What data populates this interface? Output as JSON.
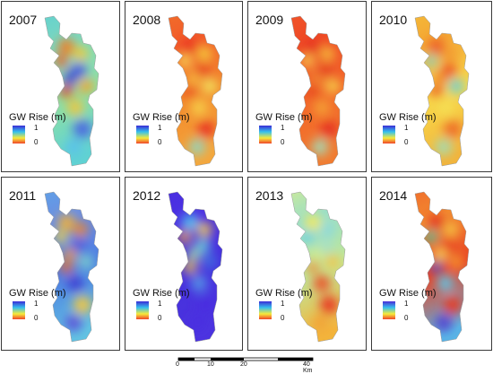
{
  "panels": [
    {
      "year": "2007",
      "legend_title": "GW Rise (m)",
      "legend_max": "1",
      "legend_min": "0",
      "ramp": [
        "#3b2bd6",
        "#35c0ee",
        "#f7ea3a",
        "#f0442a"
      ],
      "fill": [
        "#56ccd8",
        "#7ad8c0",
        "#8ee0a4",
        "#60d2d2"
      ],
      "spots": [
        {
          "c": "#f27a24"
        },
        {
          "c": "#f7c934"
        },
        {
          "c": "#f05a22"
        },
        {
          "c": "#3d4be6"
        },
        {
          "c": "#2f39d4"
        },
        {
          "c": "#f5a12c"
        },
        {
          "c": "#e23c1f"
        },
        {
          "c": "#f4c43a"
        },
        {
          "c": "#4a62e2"
        },
        {
          "c": "#58c1ec"
        }
      ]
    },
    {
      "year": "2008",
      "legend_title": "GW Rise (m)",
      "legend_max": "1",
      "legend_min": "0",
      "ramp": [
        "#3b2bd6",
        "#35c0ee",
        "#f7ea3a",
        "#f0442a"
      ],
      "fill": [
        "#f07a2a",
        "#f25a2a",
        "#f28a2e",
        "#f5a63a"
      ],
      "spots": [
        {
          "c": "#ea3620"
        },
        {
          "c": "#f5d23e"
        },
        {
          "c": "#f8e85a"
        },
        {
          "c": "#e73a20"
        },
        {
          "c": "#f6c542"
        },
        {
          "c": "#f2ea62"
        },
        {
          "c": "#ea4a22"
        },
        {
          "c": "#f6d04a"
        },
        {
          "c": "#e83420"
        },
        {
          "c": "#8fd6c2"
        }
      ]
    },
    {
      "year": "2009",
      "legend_title": "GW Rise (m)",
      "legend_max": "1",
      "legend_min": "0",
      "ramp": [
        "#3b2bd6",
        "#35c0ee",
        "#f7ea3a",
        "#f0442a"
      ],
      "fill": [
        "#f05a2a",
        "#ef4a26",
        "#f2662a",
        "#f27a2e"
      ],
      "spots": [
        {
          "c": "#e63420"
        },
        {
          "c": "#f5c03c"
        },
        {
          "c": "#f6dc52"
        },
        {
          "c": "#e43a20"
        },
        {
          "c": "#f08c32"
        },
        {
          "c": "#f5d64c"
        },
        {
          "c": "#e6441f"
        },
        {
          "c": "#f4a236"
        },
        {
          "c": "#e53322"
        },
        {
          "c": "#a2dcb8"
        }
      ]
    },
    {
      "year": "2010",
      "legend_title": "GW Rise (m)",
      "legend_max": "1",
      "legend_min": "0",
      "ramp": [
        "#3b2bd6",
        "#35c0ee",
        "#f7ea3a",
        "#f0442a"
      ],
      "fill": [
        "#f5c53a",
        "#f4a634",
        "#f7d84a",
        "#f3b43a"
      ],
      "spots": [
        {
          "c": "#ec5a26"
        },
        {
          "c": "#f39a30"
        },
        {
          "c": "#86d6c8"
        },
        {
          "c": "#ec4a24"
        },
        {
          "c": "#f0842c"
        },
        {
          "c": "#66cce0"
        },
        {
          "c": "#ea5424"
        },
        {
          "c": "#f5e054"
        },
        {
          "c": "#ee6a28"
        },
        {
          "c": "#9fdcb8"
        }
      ]
    },
    {
      "year": "2011",
      "legend_title": "GW Rise (m)",
      "legend_max": "1",
      "legend_min": "0",
      "ramp": [
        "#3b2bd6",
        "#35c0ee",
        "#f7ea3a",
        "#f0442a"
      ],
      "fill": [
        "#5aaee6",
        "#6a8ee4",
        "#4e7ee2",
        "#62c4e2"
      ],
      "spots": [
        {
          "c": "#f5b234"
        },
        {
          "c": "#f0842c"
        },
        {
          "c": "#f3d84a"
        },
        {
          "c": "#4a56dc"
        },
        {
          "c": "#f29a32"
        },
        {
          "c": "#7ed6cc"
        },
        {
          "c": "#ee6a2a"
        },
        {
          "c": "#3e3ed2"
        },
        {
          "c": "#f4c840"
        },
        {
          "c": "#5b4ed8"
        }
      ]
    },
    {
      "year": "2012",
      "legend_title": "GW Rise (m)",
      "legend_max": "1",
      "legend_min": "0",
      "ramp": [
        "#3b2bd6",
        "#35c0ee",
        "#f7ea3a",
        "#f0442a"
      ],
      "fill": [
        "#4a2ee0",
        "#4b30e2",
        "#4630dc",
        "#4c34e0"
      ],
      "spots": [
        {
          "c": "#4fc6ee"
        },
        {
          "c": "#f6d24a"
        },
        {
          "c": "#f2a836"
        },
        {
          "c": "#63d0d8"
        },
        {
          "c": "#a8e0a4"
        },
        {
          "c": "#3f6fe0"
        },
        {
          "c": "#f0c542"
        },
        {
          "c": "#5598e6"
        },
        {
          "c": "#4a2ee0"
        },
        {
          "c": "#4a2ee0"
        }
      ]
    },
    {
      "year": "2013",
      "legend_title": "GW Rise (m)",
      "legend_max": "1",
      "legend_min": "0",
      "ramp": [
        "#3b2bd6",
        "#35c0ee",
        "#f7ea3a",
        "#f0442a"
      ],
      "fill": [
        "#eef07a",
        "#9adfc8",
        "#bfe698",
        "#f3b43c"
      ],
      "spots": [
        {
          "c": "#f5e95c"
        },
        {
          "c": "#8ad8e0"
        },
        {
          "c": "#62cde8"
        },
        {
          "c": "#a6e0c8"
        },
        {
          "c": "#d6ec86"
        },
        {
          "c": "#f5c246"
        },
        {
          "c": "#f08a30"
        },
        {
          "c": "#ec4a26"
        },
        {
          "c": "#e83522"
        },
        {
          "c": "#f3a236"
        }
      ]
    },
    {
      "year": "2014",
      "legend_title": "GW Rise (m)",
      "legend_max": "1",
      "legend_min": "0",
      "ramp": [
        "#4b2bd6",
        "#35c0ee",
        "#f7ea3a",
        "#f0442a"
      ],
      "fill": [
        "#ef5a2a",
        "#f28a30",
        "#e94424",
        "#5ab6e6"
      ],
      "spots": [
        {
          "c": "#e23020"
        },
        {
          "c": "#f5c844"
        },
        {
          "c": "#3dbfa2"
        },
        {
          "c": "#e83a22"
        },
        {
          "c": "#f7e05a"
        },
        {
          "c": "#f39a32"
        },
        {
          "c": "#4a4ad8"
        },
        {
          "c": "#5ec6e8"
        },
        {
          "c": "#e83a20"
        },
        {
          "c": "#4e3ed4"
        }
      ]
    }
  ],
  "scalebar": {
    "ticks": [
      "0",
      "10",
      "20",
      "40 Km"
    ],
    "colors": [
      "#000000",
      "#ffffff"
    ]
  }
}
